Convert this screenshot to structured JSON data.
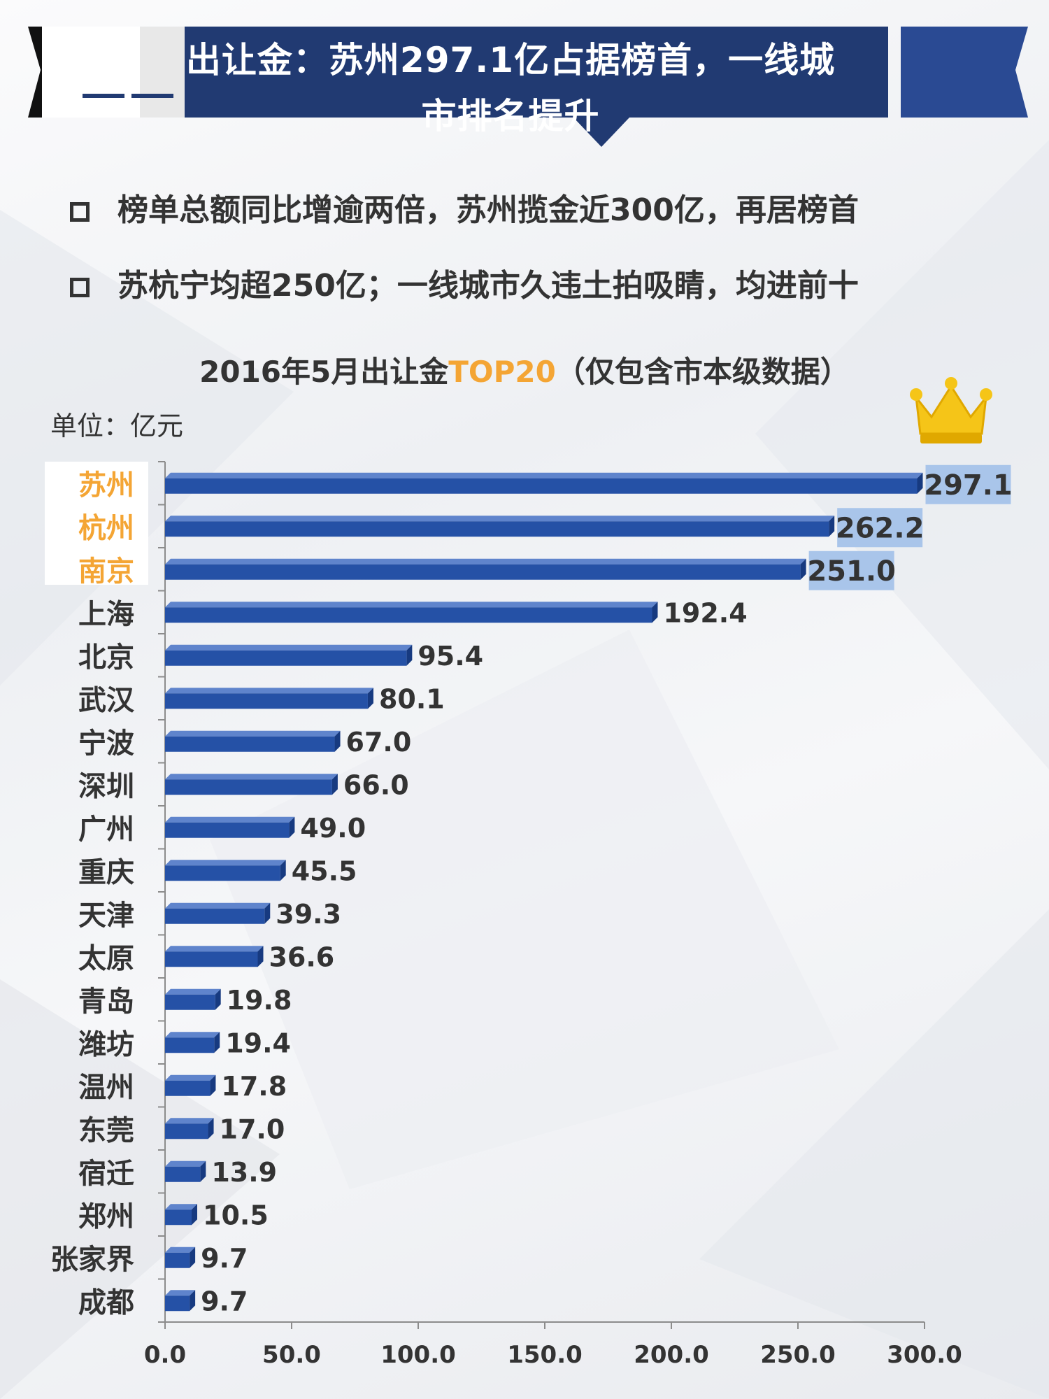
{
  "header": {
    "title_line1": "出让金：苏州297.1亿占据榜首，一线城",
    "title_line2": "市排名提升"
  },
  "bullets": [
    "榜单总额同比增逾两倍，苏州揽金近300亿，再居榜首",
    "苏杭宁均超250亿；一线城市久违土拍吸睛，均进前十"
  ],
  "chart_header": {
    "title_prefix": "2016年5月出让金",
    "title_highlight": "TOP20",
    "title_suffix": "（仅包含市本级数据）",
    "unit": "单位：亿元"
  },
  "chart_data": {
    "type": "bar",
    "orientation": "horizontal",
    "title": "2016年5月出让金TOP20（仅包含市本级数据）",
    "unit": "单位：亿元",
    "categories": [
      "苏州",
      "杭州",
      "南京",
      "上海",
      "北京",
      "武汉",
      "宁波",
      "深圳",
      "广州",
      "重庆",
      "天津",
      "太原",
      "青岛",
      "潍坊",
      "温州",
      "东莞",
      "宿迁",
      "郑州",
      "张家界",
      "成都"
    ],
    "values": [
      297.1,
      262.2,
      251.0,
      192.4,
      95.4,
      80.1,
      67.0,
      66.0,
      49.0,
      45.5,
      39.3,
      36.6,
      19.8,
      19.4,
      17.8,
      17.0,
      13.9,
      10.5,
      9.7,
      9.7
    ],
    "value_labels": [
      "297.1",
      "262.2",
      "251.0",
      "192.4",
      "95.4",
      "80.1",
      "67.0",
      "66.0",
      "49.0",
      "45.5",
      "39.3",
      "36.6",
      "19.8",
      "19.4",
      "17.8",
      "17.0",
      "13.9",
      "10.5",
      "9.7",
      "9.7"
    ],
    "highlighted_top": 3,
    "xlim": [
      0,
      300
    ],
    "xticks": [
      "0.0",
      "50.0",
      "100.0",
      "150.0",
      "200.0",
      "250.0",
      "300.0"
    ],
    "grid": false,
    "colors": {
      "bar": "#2551a6",
      "bar_top": "#5f84cc",
      "bar_side": "#173a80",
      "label_highlight_bg": "#a9c5ea",
      "highlight_text": "#f4a534",
      "axis": "#8c8c8c"
    }
  },
  "decor": {
    "crown_icon": "crown",
    "banner_color": "#213a72"
  }
}
